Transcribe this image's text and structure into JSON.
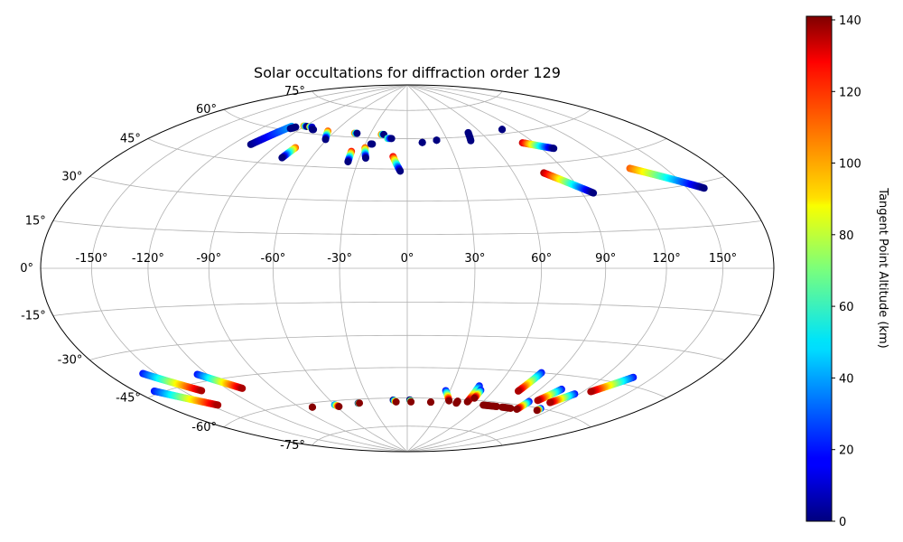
{
  "chart_data": {
    "type": "scatter",
    "projection": "hammer",
    "title": "Solar occultations for diffraction order 129",
    "longitude_ticks": [
      -150,
      -120,
      -90,
      -60,
      -30,
      0,
      30,
      60,
      90,
      120,
      150
    ],
    "longitude_tick_labels": [
      "-150°",
      "-120°",
      "-90°",
      "-60°",
      "-30°",
      "0°",
      "30°",
      "60°",
      "90°",
      "120°",
      "150°"
    ],
    "latitude_ticks": [
      -75,
      -60,
      -45,
      -30,
      -15,
      0,
      15,
      30,
      45,
      60,
      75
    ],
    "latitude_tick_labels": [
      "-75°",
      "-60°",
      "-45°",
      "-30°",
      "-15°",
      "0°",
      "15°",
      "30°",
      "45°",
      "60°",
      "75°"
    ],
    "grid": true,
    "colorbar": {
      "label": "Tangent Point Altitude (km)",
      "range": [
        0,
        141
      ],
      "colormap": "jet",
      "ticks": [
        0,
        20,
        40,
        60,
        80,
        100,
        120,
        140
      ],
      "tick_labels": [
        "0",
        "20",
        "40",
        "60",
        "80",
        "100",
        "120",
        "140"
      ]
    },
    "tracks": [
      {
        "lon_start": -108,
        "lat_start": 52,
        "lon_end": -100,
        "lat_end": 62,
        "alt_start": 0,
        "alt_end": 40
      },
      {
        "lon_start": -98,
        "lat_start": 61,
        "lon_end": -96,
        "lat_end": 62,
        "alt_start": 0,
        "alt_end": 0
      },
      {
        "lon_start": -91,
        "lat_start": 63,
        "lon_end": -88,
        "lat_end": 63,
        "alt_start": 100,
        "alt_end": 0
      },
      {
        "lon_start": -85,
        "lat_start": 63,
        "lon_end": -83,
        "lat_end": 63,
        "alt_start": 90,
        "alt_end": 10
      },
      {
        "lon_start": -80,
        "lat_start": 62,
        "lon_end": -79,
        "lat_end": 62,
        "alt_start": 0,
        "alt_end": 0
      },
      {
        "lon_start": -76,
        "lat_start": 53,
        "lon_end": -78,
        "lat_end": 48,
        "alt_start": 110,
        "alt_end": 0
      },
      {
        "lon_start": -66,
        "lat_start": 62,
        "lon_end": -61,
        "lat_end": 58,
        "alt_start": 110,
        "alt_end": 0
      },
      {
        "lon_start": -43,
        "lat_start": 62,
        "lon_end": -41,
        "lat_end": 62,
        "alt_start": 100,
        "alt_end": 0
      },
      {
        "lon_start": -37,
        "lat_start": 53,
        "lon_end": -36,
        "lat_end": 48,
        "alt_start": 120,
        "alt_end": 0
      },
      {
        "lon_start": -29,
        "lat_start": 55,
        "lon_end": -26,
        "lat_end": 50,
        "alt_start": 110,
        "alt_end": 0
      },
      {
        "lon_start": -26,
        "lat_start": 57,
        "lon_end": -25,
        "lat_end": 57,
        "alt_start": 0,
        "alt_end": 0
      },
      {
        "lon_start": -21,
        "lat_start": 62,
        "lon_end": -19,
        "lat_end": 62,
        "alt_start": 100,
        "alt_end": 0
      },
      {
        "lon_start": -15,
        "lat_start": 60,
        "lon_end": -12,
        "lat_end": 60,
        "alt_start": 60,
        "alt_end": 0
      },
      {
        "lon_start": -9,
        "lat_start": 51,
        "lon_end": -4,
        "lat_end": 44,
        "alt_start": 125,
        "alt_end": 0
      },
      {
        "lon_start": 11,
        "lat_start": 58,
        "lon_end": 11,
        "lat_end": 58,
        "alt_start": 0,
        "alt_end": 0
      },
      {
        "lon_start": 22,
        "lat_start": 59,
        "lon_end": 22,
        "lat_end": 59,
        "alt_start": 0,
        "alt_end": 0
      },
      {
        "lon_start": 47,
        "lat_start": 58,
        "lon_end": 50,
        "lat_end": 62,
        "alt_start": 0,
        "alt_end": 0
      },
      {
        "lon_start": 80,
        "lat_start": 62,
        "lon_end": 80,
        "lat_end": 62,
        "alt_start": 0,
        "alt_end": 0
      },
      {
        "lon_start": 82,
        "lat_start": 55,
        "lon_end": 98,
        "lat_end": 51,
        "alt_start": 130,
        "alt_end": 0
      },
      {
        "lon_start": 77,
        "lat_start": 41,
        "lon_end": 96,
        "lat_end": 31,
        "alt_start": 135,
        "alt_end": 0
      },
      {
        "lon_start": 129,
        "lat_start": 39,
        "lon_end": 160,
        "lat_end": 28,
        "alt_start": 110,
        "alt_end": 0
      },
      {
        "lon_start": -158,
        "lat_start": -38,
        "lon_end": -138,
        "lat_end": -48,
        "alt_start": 20,
        "alt_end": 135
      },
      {
        "lon_start": -168,
        "lat_start": -44,
        "lon_end": -145,
        "lat_end": -54,
        "alt_start": 20,
        "alt_end": 135
      },
      {
        "lon_start": -126,
        "lat_start": -42,
        "lon_end": -110,
        "lat_end": -50,
        "alt_start": 20,
        "alt_end": 135
      },
      {
        "lon_start": -80,
        "lat_start": -62,
        "lon_end": -80,
        "lat_end": -62,
        "alt_start": 140,
        "alt_end": 140
      },
      {
        "lon_start": -60,
        "lat_start": -62,
        "lon_end": -58,
        "lat_end": -63,
        "alt_start": 40,
        "alt_end": 140
      },
      {
        "lon_start": -40,
        "lat_start": -62,
        "lon_end": -39,
        "lat_end": -62,
        "alt_start": 0,
        "alt_end": 140
      },
      {
        "lon_start": -11,
        "lat_start": -61,
        "lon_end": -9,
        "lat_end": -62,
        "alt_start": 0,
        "alt_end": 140
      },
      {
        "lon_start": 2,
        "lat_start": -61,
        "lon_end": 3,
        "lat_end": -62,
        "alt_start": 0,
        "alt_end": 140
      },
      {
        "lon_start": 19,
        "lat_start": -62,
        "lon_end": 19,
        "lat_end": -62,
        "alt_start": 140,
        "alt_end": 140
      },
      {
        "lon_start": 27,
        "lat_start": -56,
        "lon_end": 33,
        "lat_end": -61,
        "alt_start": 20,
        "alt_end": 140
      },
      {
        "lon_start": 40,
        "lat_start": -61,
        "lon_end": 40,
        "lat_end": -62,
        "alt_start": 140,
        "alt_end": 140
      },
      {
        "lon_start": 48,
        "lat_start": -53,
        "lon_end": 48,
        "lat_end": -61,
        "alt_start": 20,
        "alt_end": 140
      },
      {
        "lon_start": 51,
        "lat_start": -55,
        "lon_end": 51,
        "lat_end": -59,
        "alt_start": 20,
        "alt_end": 140
      },
      {
        "lon_start": 63,
        "lat_start": -62,
        "lon_end": 75,
        "lat_end": -62,
        "alt_start": 140,
        "alt_end": 140
      },
      {
        "lon_start": 80,
        "lat_start": -45,
        "lon_end": 77,
        "lat_end": -54,
        "alt_start": 20,
        "alt_end": 135
      },
      {
        "lon_start": 80,
        "lat_start": -62,
        "lon_end": 88,
        "lat_end": -62,
        "alt_start": 140,
        "alt_end": 140
      },
      {
        "lon_start": 94,
        "lat_start": -58,
        "lon_end": 94,
        "lat_end": -62,
        "alt_start": 20,
        "alt_end": 140
      },
      {
        "lon_start": 104,
        "lat_start": -51,
        "lon_end": 99,
        "lat_end": -57,
        "alt_start": 20,
        "alt_end": 135
      },
      {
        "lon_start": 117,
        "lat_start": -52,
        "lon_end": 110,
        "lat_end": -57,
        "alt_start": 20,
        "alt_end": 135
      },
      {
        "lon_start": 111,
        "lat_start": -60,
        "lon_end": 111,
        "lat_end": -61,
        "alt_start": 20,
        "alt_end": 140
      },
      {
        "lon_start": 138,
        "lat_start": -42,
        "lon_end": 125,
        "lat_end": -50,
        "alt_start": 20,
        "alt_end": 135
      }
    ]
  }
}
